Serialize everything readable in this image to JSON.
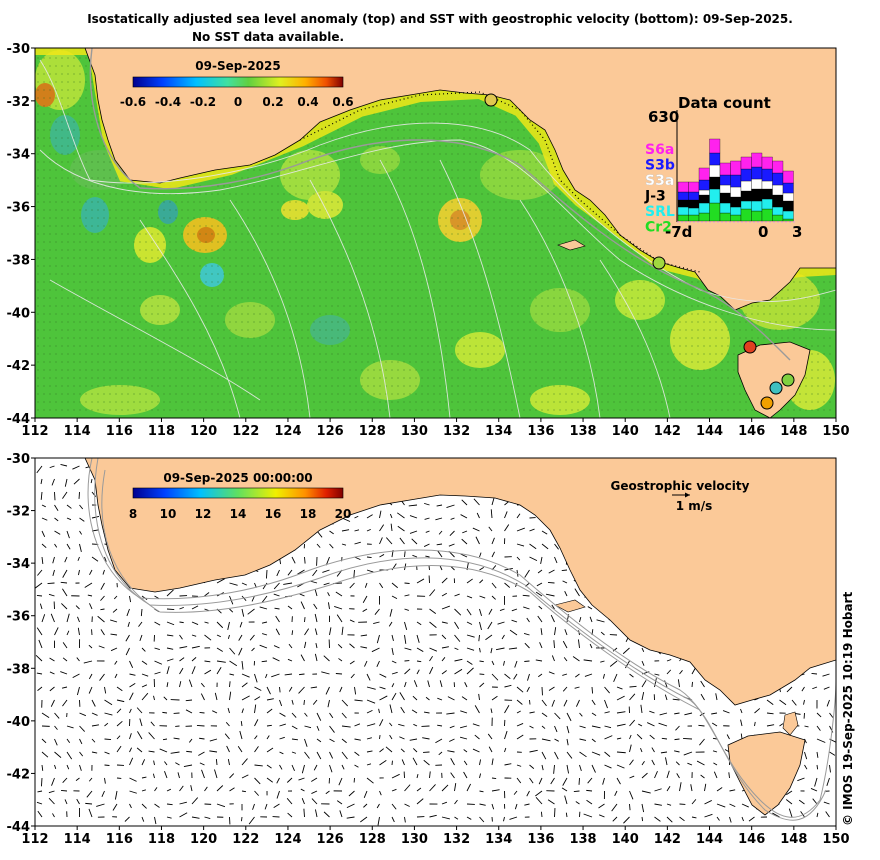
{
  "title": "Isostatically adjusted sea level anomaly (top) and SST with geostrophic velocity (bottom): 09-Sep-2025.",
  "subtitle": "No SST data available.",
  "axes": {
    "lon_ticks": [
      "112",
      "114",
      "116",
      "118",
      "120",
      "122",
      "124",
      "126",
      "128",
      "130",
      "132",
      "134",
      "136",
      "138",
      "140",
      "142",
      "144",
      "146",
      "148",
      "150"
    ],
    "lat_ticks": [
      "-30",
      "-32",
      "-34",
      "-36",
      "-38",
      "-40",
      "-42",
      "-44"
    ]
  },
  "colors": {
    "land": "#fbc998",
    "sla_base": "#4ec43b"
  },
  "top_map": {
    "name": "sea-level-anomaly-map",
    "colorbar": {
      "date": "09-Sep-2025",
      "ticks": [
        "-0.6",
        "-0.4",
        "-0.2",
        "0",
        "0.2",
        "0.4",
        "0.6"
      ]
    },
    "data_count": {
      "title": "Data count",
      "max_label": "630",
      "x_labels": [
        "-7d",
        "0",
        "3"
      ],
      "missions": [
        {
          "name": "S6a",
          "color": "#ff22ee"
        },
        {
          "name": "S3b",
          "color": "#1a1aff"
        },
        {
          "name": "S3a",
          "color": "#ffffff"
        },
        {
          "name": "J-3",
          "color": "#000000"
        },
        {
          "name": "SRL",
          "color": "#22eeee"
        },
        {
          "name": "Cr2",
          "color": "#22dd22"
        }
      ]
    }
  },
  "bottom_map": {
    "name": "sst-geostrophic-velocity-map",
    "colorbar": {
      "date": "09-Sep-2025 00:00:00",
      "ticks": [
        "8",
        "10",
        "12",
        "14",
        "16",
        "18",
        "20"
      ]
    },
    "velocity_legend": {
      "label": "Geostrophic velocity",
      "scale": "1 m/s"
    }
  },
  "credit": "© IMOS 19-Sep-2025 10:19 Hobart"
}
